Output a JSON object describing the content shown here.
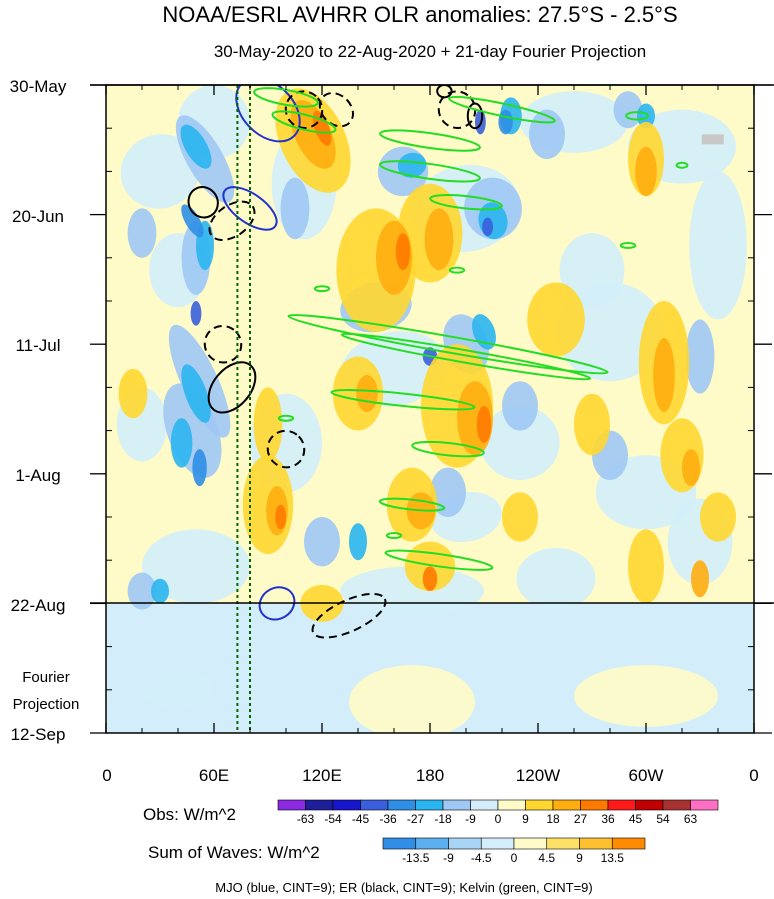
{
  "chart_data": {
    "type": "heatmap",
    "title": "NOAA/ESRL AVHRR OLR anomalies: 27.5°S - 2.5°S",
    "subtitle": "30-May-2020 to 22-Aug-2020 + 21-day Fourier Projection",
    "x_ticks": [
      "0",
      "60E",
      "120E",
      "180",
      "120W",
      "60W",
      "0"
    ],
    "x_tick_lon": [
      0,
      60,
      120,
      180,
      240,
      300,
      360
    ],
    "y_ticks": [
      "30-May",
      "20-Jun",
      "11-Jul",
      "1-Aug",
      "22-Aug",
      "12-Sep"
    ],
    "y_tick_day": [
      0,
      21,
      42,
      63,
      84,
      105
    ],
    "y_extra_label": [
      "Fourier",
      "Projection"
    ],
    "obs_label": "Obs: W/m^2",
    "obs_levels": [
      "-63",
      "-54",
      "-45",
      "-36",
      "-27",
      "-18",
      "-9",
      "0",
      "9",
      "18",
      "27",
      "36",
      "45",
      "54",
      "63"
    ],
    "obs_colors": [
      "#8a2be2",
      "#1e1e9a",
      "#1616cc",
      "#3a5fdc",
      "#2f8fe6",
      "#2bb5f0",
      "#9fc8f4",
      "#d3eefa",
      "#fffbc8",
      "#ffd730",
      "#ffad10",
      "#ff7a00",
      "#ff1a1a",
      "#c00000",
      "#a83232",
      "#ff6fc3"
    ],
    "waves_label": "Sum of Waves: W/m^2",
    "waves_levels": [
      "-13.5",
      "-9",
      "-4.5",
      "0",
      "4.5",
      "9",
      "13.5"
    ],
    "waves_colors": [
      "#2f8fe6",
      "#5cb0f0",
      "#a8d4f6",
      "#d3eefa",
      "#fffbc8",
      "#ffe066",
      "#ffc030",
      "#ff8c00"
    ],
    "footer": "MJO (blue, CINT=9); ER (black, CINT=9); Kelvin (green, CINT=9)",
    "contours": {
      "mjo_color": "#2233cc",
      "er_color": "#000000",
      "kelvin_color": "#22dd22",
      "reference_lines_lon": [
        73,
        80
      ],
      "reference_color": "#006600"
    }
  }
}
